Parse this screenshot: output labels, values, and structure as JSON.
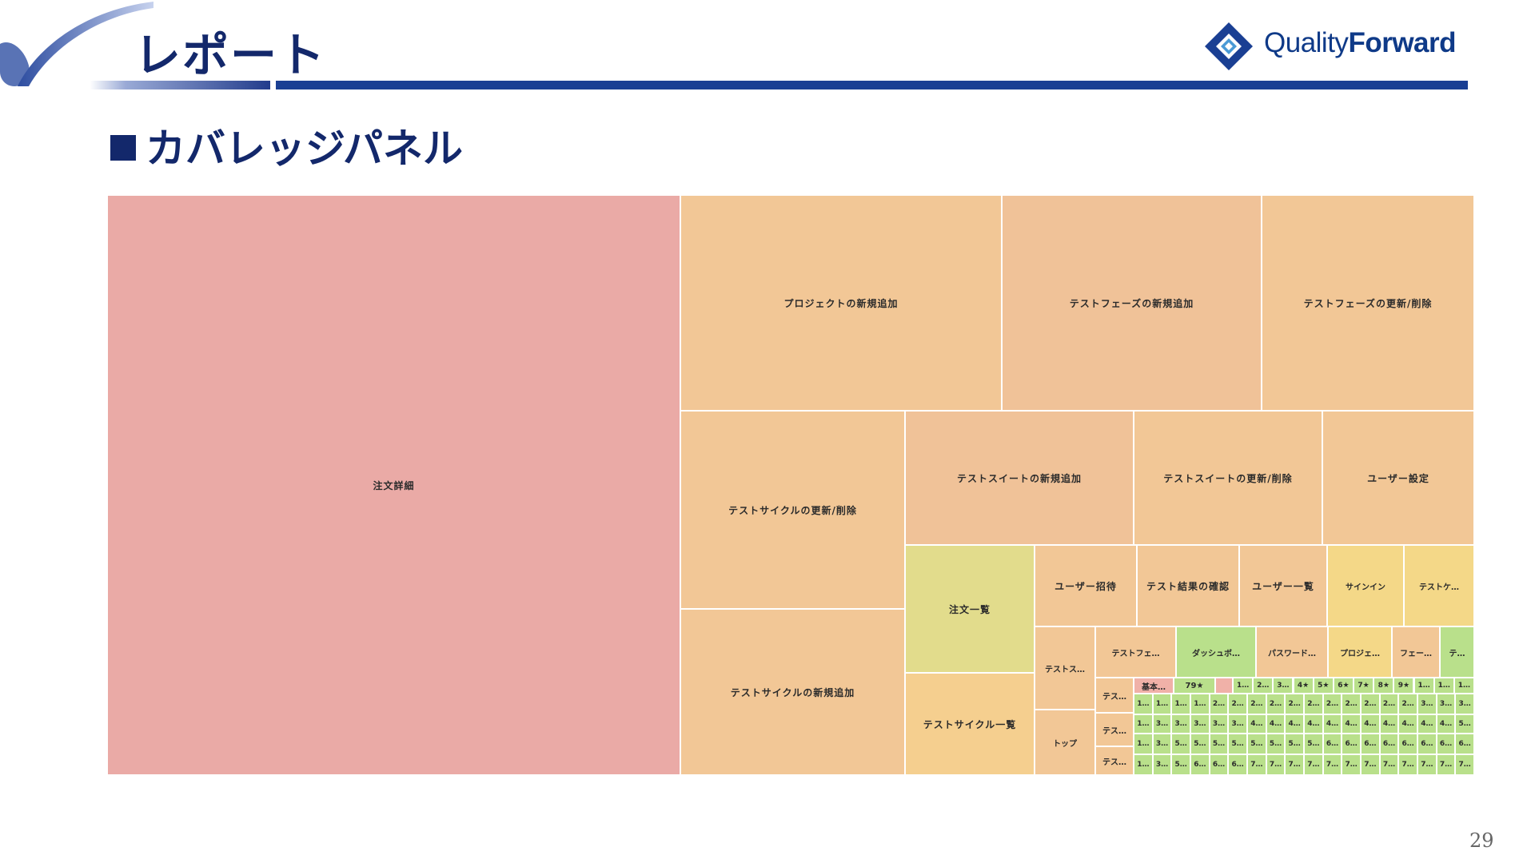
{
  "header": {
    "title": "レポート",
    "logo_quality": "Quality",
    "logo_forward": "Forward",
    "logo_colors": {
      "diamond_outer": "#1a3f93",
      "diamond_inner": "#4a9ad6"
    }
  },
  "section": {
    "title": "カバレッジパネル"
  },
  "page_number": "29",
  "colors": {
    "red": "#eaaaa6",
    "orange": "#f2c796",
    "peach": "#f0c298",
    "lightorange": "#f5cf8f",
    "yellow": "#e2dc8c",
    "lightyellow": "#f4d888",
    "green": "#b9e08b",
    "pink": "#f0b1a8",
    "header_navy": "#13286b",
    "rule_blue": "#1a3f93"
  },
  "chart_data": {
    "type": "treemap",
    "title": "",
    "cells": [
      {
        "label": "注文詳細",
        "color": "red"
      },
      {
        "label": "プロジェクトの新規追加",
        "color": "orange"
      },
      {
        "label": "テストフェーズの新規追加",
        "color": "peach"
      },
      {
        "label": "テストフェーズの更新/削除",
        "color": "orange"
      },
      {
        "label": "テストサイクルの更新/削除",
        "color": "orange"
      },
      {
        "label": "テストサイクルの新規追加",
        "color": "orange"
      },
      {
        "label": "テストスイートの新規追加",
        "color": "peach"
      },
      {
        "label": "テストスイートの更新/削除",
        "color": "orange"
      },
      {
        "label": "ユーザー設定",
        "color": "orange"
      },
      {
        "label": "注文一覧",
        "color": "yellow"
      },
      {
        "label": "テストサイクル一覧",
        "color": "lightorange"
      },
      {
        "label": "ユーザー招待",
        "color": "orange"
      },
      {
        "label": "テスト結果の確認",
        "color": "orange"
      },
      {
        "label": "ユーザー一覧",
        "color": "orange"
      },
      {
        "label": "サインイン",
        "color": "lightyellow"
      },
      {
        "label": "テストケ…",
        "color": "lightyellow"
      },
      {
        "label": "テストス…",
        "color": "orange"
      },
      {
        "label": "トップ",
        "color": "orange"
      },
      {
        "label": "テストフェ…",
        "color": "orange"
      },
      {
        "label": "ダッシュボ…",
        "color": "green"
      },
      {
        "label": "パスワード…",
        "color": "orange"
      },
      {
        "label": "プロジェ…",
        "color": "lightyellow"
      },
      {
        "label": "フェー…",
        "color": "orange"
      },
      {
        "label": "テ…",
        "color": "green"
      },
      {
        "label": "テス…",
        "color": "orange"
      },
      {
        "label": "テス…",
        "color": "orange"
      },
      {
        "label": "テス…",
        "color": "orange"
      },
      {
        "label": "基本…",
        "color": "pink"
      },
      {
        "label": "79★",
        "color": "green"
      },
      {
        "label": "",
        "color": "pink"
      }
    ],
    "tiny_rows": [
      [
        "1…",
        "2…",
        "3…",
        "4★",
        "5★",
        "6★",
        "7★",
        "8★",
        "9★",
        "1…",
        "1…",
        "1…"
      ],
      [
        "1…",
        "1…",
        "1…",
        "1…",
        "2…",
        "2…",
        "2…",
        "2…",
        "2…",
        "2…",
        "2…",
        "2…",
        "2…",
        "2…",
        "2…",
        "3…",
        "3…",
        "3…"
      ],
      [
        "1…",
        "3…",
        "3…",
        "3…",
        "3…",
        "3…",
        "4…",
        "4…",
        "4…",
        "4…",
        "4…",
        "4…",
        "4…",
        "4…",
        "4…",
        "4…",
        "4…",
        "5…"
      ],
      [
        "1…",
        "3…",
        "5…",
        "5…",
        "5…",
        "5…",
        "5…",
        "5…",
        "5…",
        "5…",
        "6…",
        "6…",
        "6…",
        "6…",
        "6…",
        "6…",
        "6…",
        "6…"
      ],
      [
        "1…",
        "3…",
        "5…",
        "6…",
        "6…",
        "6…",
        "7…",
        "7…",
        "7…",
        "7…",
        "7…",
        "7…",
        "7…",
        "7…",
        "7…",
        "7…",
        "7…",
        "7…"
      ]
    ]
  }
}
